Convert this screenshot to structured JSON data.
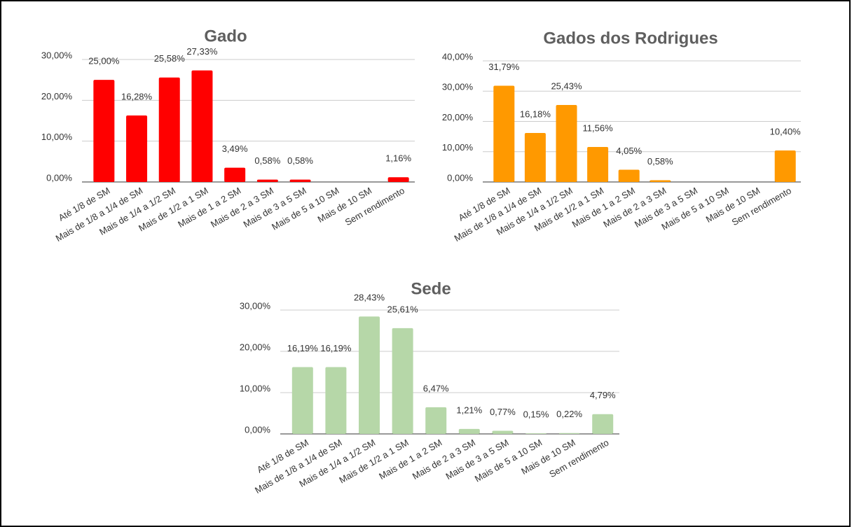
{
  "chart_data": [
    {
      "type": "bar",
      "title": "Gado",
      "color": "#ff0000",
      "categories": [
        "Até 1/8 de SM",
        "Mais de 1/8 a 1/4 de SM",
        "Mais de 1/4 a 1/2 SM",
        "Mais de 1/2 a 1 SM",
        "Mais de 1 a 2 SM",
        "Mais de 2 a 3 SM",
        "Mais de 3 a 5 SM",
        "Mais de 5 a 10 SM",
        "Mais de 10 SM",
        "Sem rendimento"
      ],
      "values": [
        25.0,
        16.28,
        25.58,
        27.33,
        3.49,
        0.58,
        0.58,
        0,
        0,
        1.16
      ],
      "value_labels": [
        "25,00%",
        "16,28%",
        "25,58%",
        "27,33%",
        "3,49%",
        "0,58%",
        "0,58%",
        null,
        null,
        "1,16%"
      ],
      "ylim": [
        0,
        30
      ],
      "yticks": [
        {
          "value": 0,
          "label": "0,00%"
        },
        {
          "value": 10,
          "label": "10,00%"
        },
        {
          "value": 20,
          "label": "20,00%"
        },
        {
          "value": 30,
          "label": "30,00%"
        }
      ],
      "grid": true
    },
    {
      "type": "bar",
      "title": "Gados dos Rodrigues",
      "color": "#ff9900",
      "categories": [
        "Até 1/8 de SM",
        "Mais de 1/8 a 1/4 de SM",
        "Mais de 1/4 a 1/2 SM",
        "Mais de 1/2 a 1 SM",
        "Mais de 1 a 2 SM",
        "Mais de 2 a 3 SM",
        "Mais de 3 a 5 SM",
        "Mais de 5 a 10 SM",
        "Mais de 10 SM",
        "Sem rendimento"
      ],
      "values": [
        31.79,
        16.18,
        25.43,
        11.56,
        4.05,
        0.58,
        0,
        0,
        0,
        10.4
      ],
      "value_labels": [
        "31,79%",
        "16,18%",
        "25,43%",
        "11,56%",
        "4,05%",
        "0,58%",
        null,
        null,
        null,
        "10,40%"
      ],
      "ylim": [
        0,
        40
      ],
      "yticks": [
        {
          "value": 0,
          "label": "0,00%"
        },
        {
          "value": 10,
          "label": "10,00%"
        },
        {
          "value": 20,
          "label": "20,00%"
        },
        {
          "value": 30,
          "label": "30,00%"
        },
        {
          "value": 40,
          "label": "40,00%"
        }
      ],
      "grid": true
    },
    {
      "type": "bar",
      "title": "Sede",
      "color": "#b6d7a8",
      "categories": [
        "Até 1/8 de SM",
        "Mais de 1/8 a 1/4 de SM",
        "Mais de 1/4 a 1/2 SM",
        "Mais de 1/2 a 1 SM",
        "Mais de 1 a 2 SM",
        "Mais de 2 a 3 SM",
        "Mais de 3 a 5 SM",
        "Mais de 5 a 10 SM",
        "Mais de 10 SM",
        "Sem rendimento"
      ],
      "values": [
        16.19,
        16.19,
        28.43,
        25.61,
        6.47,
        1.21,
        0.77,
        0.15,
        0.22,
        4.79
      ],
      "value_labels": [
        "16,19%",
        "16,19%",
        "28,43%",
        "25,61%",
        "6,47%",
        "1,21%",
        "0,77%",
        "0,15%",
        "0,22%",
        "4,79%"
      ],
      "ylim": [
        0,
        30
      ],
      "yticks": [
        {
          "value": 0,
          "label": "0,00%"
        },
        {
          "value": 10,
          "label": "10,00%"
        },
        {
          "value": 20,
          "label": "20,00%"
        },
        {
          "value": 30,
          "label": "30,00%"
        }
      ],
      "grid": true
    }
  ]
}
